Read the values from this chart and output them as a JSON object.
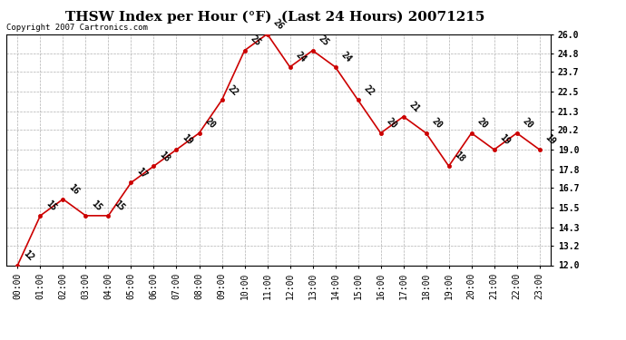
{
  "title": "THSW Index per Hour (°F)  (Last 24 Hours) 20071215",
  "copyright": "Copyright 2007 Cartronics.com",
  "hours": [
    "00:00",
    "01:00",
    "02:00",
    "03:00",
    "04:00",
    "05:00",
    "06:00",
    "07:00",
    "08:00",
    "09:00",
    "10:00",
    "11:00",
    "12:00",
    "13:00",
    "14:00",
    "15:00",
    "16:00",
    "17:00",
    "18:00",
    "19:00",
    "20:00",
    "21:00",
    "22:00",
    "23:00"
  ],
  "values": [
    12,
    15,
    16,
    15,
    15,
    17,
    18,
    19,
    20,
    22,
    25,
    26,
    24,
    25,
    24,
    22,
    20,
    21,
    20,
    18,
    20,
    19,
    20,
    19
  ],
  "line_color": "#cc0000",
  "marker_color": "#cc0000",
  "bg_color": "#ffffff",
  "grid_color": "#b0b0b0",
  "ylim_min": 12.0,
  "ylim_max": 26.0,
  "ytick_values": [
    12.0,
    13.2,
    14.3,
    15.5,
    16.7,
    17.8,
    19.0,
    20.2,
    21.3,
    22.5,
    23.7,
    24.8,
    26.0
  ],
  "title_fontsize": 11,
  "copyright_fontsize": 6.5,
  "label_fontsize": 7,
  "tick_fontsize": 7
}
